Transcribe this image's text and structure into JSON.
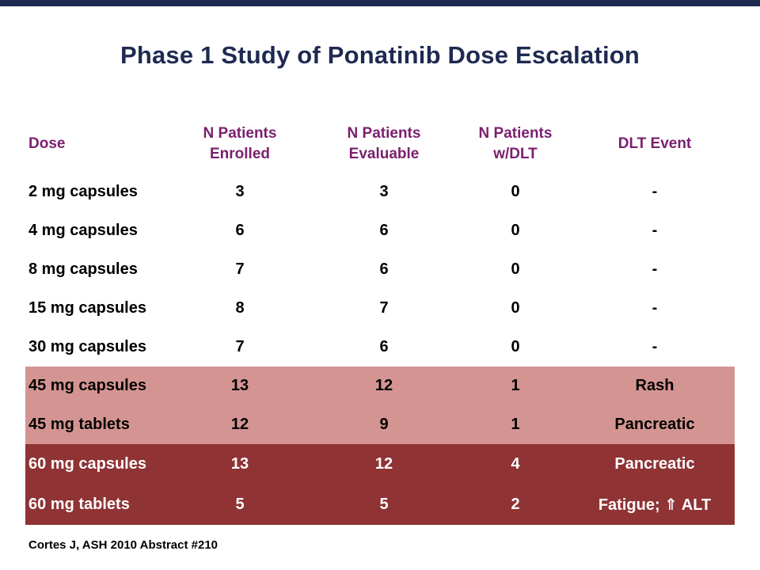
{
  "slide": {
    "title": "Phase 1 Study of Ponatinib Dose Escalation",
    "footnote": "Cortes J, ASH 2010 Abstract #210",
    "colors": {
      "title": "#1f2a52",
      "header_text": "#7a1f6e",
      "pink_band": "#d49592",
      "dark_band": "#8f3335"
    }
  },
  "table": {
    "headers": [
      [
        "Dose"
      ],
      [
        "N Patients",
        "Enrolled"
      ],
      [
        "N Patients",
        "Evaluable"
      ],
      [
        "N Patients",
        "w/DLT"
      ],
      [
        "DLT Event"
      ]
    ],
    "rows": [
      {
        "band": "none",
        "cells": [
          "2 mg capsules",
          "3",
          "3",
          "0",
          "-"
        ]
      },
      {
        "band": "none",
        "cells": [
          "4 mg capsules",
          "6",
          "6",
          "0",
          "-"
        ]
      },
      {
        "band": "none",
        "cells": [
          "8 mg capsules",
          "7",
          "6",
          "0",
          "-"
        ]
      },
      {
        "band": "none",
        "cells": [
          "15 mg capsules",
          "8",
          "7",
          "0",
          "-"
        ]
      },
      {
        "band": "none",
        "cells": [
          "30 mg capsules",
          "7",
          "6",
          "0",
          "-"
        ]
      },
      {
        "band": "pink",
        "cells": [
          "45 mg capsules",
          "13",
          "12",
          "1",
          "Rash"
        ]
      },
      {
        "band": "pink",
        "cells": [
          "45 mg tablets",
          "12",
          "9",
          "1",
          "Pancreatic"
        ]
      },
      {
        "band": "dark",
        "cells": [
          "60 mg capsules",
          "13",
          "12",
          "4",
          "Pancreatic"
        ]
      },
      {
        "band": "dark",
        "cells": [
          "60 mg tablets",
          "5",
          "5",
          "2",
          "Fatigue; ⇑ ALT"
        ]
      }
    ]
  }
}
